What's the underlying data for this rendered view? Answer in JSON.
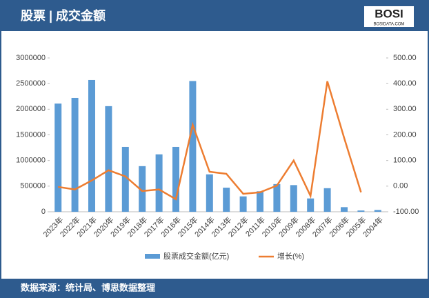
{
  "header": {
    "title": "股票 | 成交金额",
    "logo": "BOSI",
    "logo_sub": "BOSIDATA.COM"
  },
  "footer": {
    "source": "数据来源：统计局、博思数据整理"
  },
  "chart_data": {
    "type": "bar-line",
    "categories": [
      "2023年",
      "2022年",
      "2021年",
      "2020年",
      "2019年",
      "2018年",
      "2017年",
      "2016年",
      "2015年",
      "2014年",
      "2013年",
      "2012年",
      "2011年",
      "2010年",
      "2009年",
      "2008年",
      "2007年",
      "2006年",
      "2005年",
      "2004年"
    ],
    "series": [
      {
        "name": "股票成交金额(亿元)",
        "type": "bar",
        "color": "#5b9bd5",
        "values": [
          2110000,
          2220000,
          2570000,
          2060000,
          1265000,
          890000,
          1120000,
          1265000,
          2550000,
          730000,
          470000,
          300000,
          400000,
          540000,
          520000,
          260000,
          460000,
          90000,
          25000,
          35000
        ]
      },
      {
        "name": "增长(%)",
        "type": "line",
        "axis": "y2",
        "color": "#ed7d31",
        "values": [
          -3,
          -13,
          22,
          62,
          38,
          -19,
          -13,
          -51,
          239,
          56,
          48,
          -30,
          -24,
          2,
          100,
          -38,
          409,
          188,
          -24,
          null
        ]
      }
    ],
    "ylim": [
      0,
      3000000
    ],
    "yticks": [
      0,
      500000,
      1000000,
      1500000,
      2000000,
      2500000,
      3000000
    ],
    "y2lim": [
      -100,
      500
    ],
    "y2ticks": [
      {
        "value": -100,
        "label": "-100.00"
      },
      {
        "value": 0,
        "label": "0.00"
      },
      {
        "value": 100,
        "label": "100.00"
      },
      {
        "value": 200,
        "label": "200.00"
      },
      {
        "value": 300,
        "label": "300.00"
      },
      {
        "value": 400,
        "label": "400.00"
      },
      {
        "value": 500,
        "label": "500.00"
      }
    ]
  }
}
